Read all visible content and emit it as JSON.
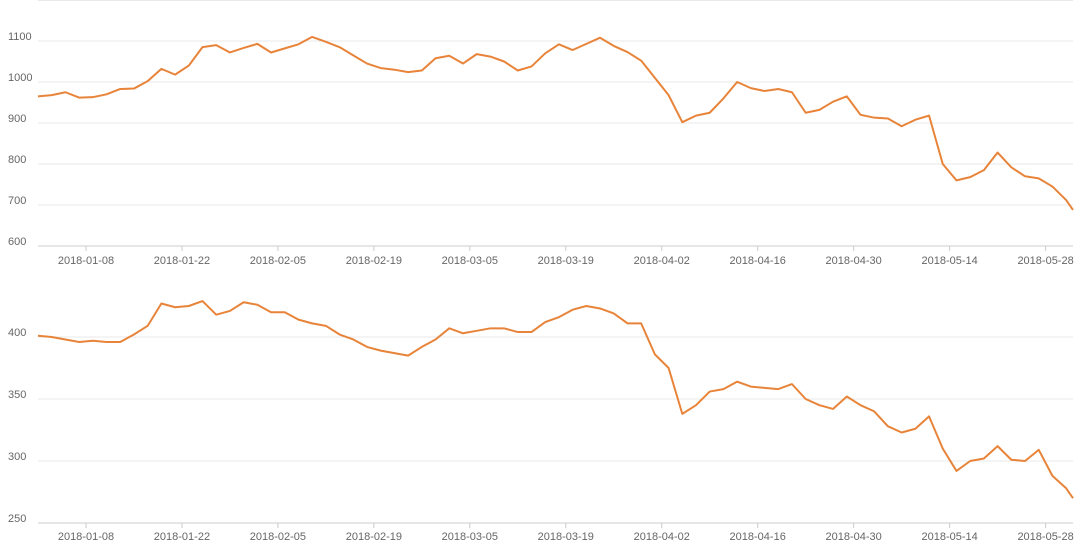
{
  "chart_data": [
    {
      "type": "line",
      "color": "#e8843a",
      "grid": true,
      "x": [
        "2018-01-01",
        "2018-01-03",
        "2018-01-05",
        "2018-01-07",
        "2018-01-09",
        "2018-01-11",
        "2018-01-13",
        "2018-01-15",
        "2018-01-17",
        "2018-01-19",
        "2018-01-21",
        "2018-01-23",
        "2018-01-25",
        "2018-01-27",
        "2018-01-29",
        "2018-01-31",
        "2018-02-02",
        "2018-02-04",
        "2018-02-06",
        "2018-02-08",
        "2018-02-10",
        "2018-02-12",
        "2018-02-14",
        "2018-02-16",
        "2018-02-18",
        "2018-02-20",
        "2018-02-22",
        "2018-02-24",
        "2018-02-26",
        "2018-02-28",
        "2018-03-02",
        "2018-03-04",
        "2018-03-06",
        "2018-03-08",
        "2018-03-10",
        "2018-03-12",
        "2018-03-14",
        "2018-03-16",
        "2018-03-18",
        "2018-03-20",
        "2018-03-22",
        "2018-03-24",
        "2018-03-26",
        "2018-03-28",
        "2018-03-30",
        "2018-04-01",
        "2018-04-03",
        "2018-04-05",
        "2018-04-07",
        "2018-04-09",
        "2018-04-11",
        "2018-04-13",
        "2018-04-15",
        "2018-04-17",
        "2018-04-19",
        "2018-04-21",
        "2018-04-23",
        "2018-04-25",
        "2018-04-27",
        "2018-04-29",
        "2018-05-01",
        "2018-05-03",
        "2018-05-05",
        "2018-05-07",
        "2018-05-09",
        "2018-05-11",
        "2018-05-13",
        "2018-05-15",
        "2018-05-17",
        "2018-05-19",
        "2018-05-21",
        "2018-05-23",
        "2018-05-25",
        "2018-05-27",
        "2018-05-29",
        "2018-05-31",
        "2018-06-01"
      ],
      "values": [
        965,
        968,
        975,
        962,
        963,
        970,
        983,
        984,
        1002,
        1032,
        1018,
        1040,
        1085,
        1090,
        1072,
        1083,
        1093,
        1072,
        1082,
        1092,
        1110,
        1098,
        1085,
        1065,
        1045,
        1034,
        1030,
        1024,
        1028,
        1058,
        1064,
        1045,
        1068,
        1062,
        1050,
        1028,
        1038,
        1070,
        1092,
        1078,
        1093,
        1108,
        1088,
        1073,
        1052,
        1010,
        968,
        902,
        918,
        925,
        960,
        1000,
        985,
        978,
        983,
        975,
        925,
        932,
        952,
        965,
        920,
        913,
        911,
        892,
        908,
        918,
        800,
        760,
        768,
        785,
        828,
        792,
        770,
        765,
        745,
        712,
        688
      ],
      "xlim": [
        "2018-01-01",
        "2018-06-01"
      ],
      "xticks": [
        "2018-01-08",
        "2018-01-22",
        "2018-02-05",
        "2018-02-19",
        "2018-03-05",
        "2018-03-19",
        "2018-04-02",
        "2018-04-16",
        "2018-04-30",
        "2018-05-14",
        "2018-05-28"
      ],
      "ylim": [
        600,
        1200
      ],
      "yticks": [
        600,
        700,
        800,
        900,
        1000,
        1100
      ]
    },
    {
      "type": "line",
      "color": "#e8843a",
      "grid": true,
      "x": [
        "2018-01-01",
        "2018-01-03",
        "2018-01-05",
        "2018-01-07",
        "2018-01-09",
        "2018-01-11",
        "2018-01-13",
        "2018-01-15",
        "2018-01-17",
        "2018-01-19",
        "2018-01-21",
        "2018-01-23",
        "2018-01-25",
        "2018-01-27",
        "2018-01-29",
        "2018-01-31",
        "2018-02-02",
        "2018-02-04",
        "2018-02-06",
        "2018-02-08",
        "2018-02-10",
        "2018-02-12",
        "2018-02-14",
        "2018-02-16",
        "2018-02-18",
        "2018-02-20",
        "2018-02-22",
        "2018-02-24",
        "2018-02-26",
        "2018-02-28",
        "2018-03-02",
        "2018-03-04",
        "2018-03-06",
        "2018-03-08",
        "2018-03-10",
        "2018-03-12",
        "2018-03-14",
        "2018-03-16",
        "2018-03-18",
        "2018-03-20",
        "2018-03-22",
        "2018-03-24",
        "2018-03-26",
        "2018-03-28",
        "2018-03-30",
        "2018-04-01",
        "2018-04-03",
        "2018-04-05",
        "2018-04-07",
        "2018-04-09",
        "2018-04-11",
        "2018-04-13",
        "2018-04-15",
        "2018-04-17",
        "2018-04-19",
        "2018-04-21",
        "2018-04-23",
        "2018-04-25",
        "2018-04-27",
        "2018-04-29",
        "2018-05-01",
        "2018-05-03",
        "2018-05-05",
        "2018-05-07",
        "2018-05-09",
        "2018-05-11",
        "2018-05-13",
        "2018-05-15",
        "2018-05-17",
        "2018-05-19",
        "2018-05-21",
        "2018-05-23",
        "2018-05-25",
        "2018-05-27",
        "2018-05-29",
        "2018-05-31",
        "2018-06-01"
      ],
      "values": [
        401,
        400,
        398,
        396,
        397,
        396,
        396,
        402,
        409,
        427,
        424,
        425,
        429,
        418,
        421,
        428,
        426,
        420,
        420,
        414,
        411,
        409,
        402,
        398,
        392,
        389,
        387,
        385,
        392,
        398,
        407,
        403,
        405,
        407,
        407,
        404,
        404,
        412,
        416,
        422,
        425,
        423,
        419,
        411,
        411,
        386,
        375,
        338,
        345,
        356,
        358,
        364,
        360,
        359,
        358,
        362,
        350,
        345,
        342,
        352,
        345,
        340,
        328,
        323,
        326,
        336,
        310,
        292,
        300,
        302,
        312,
        301,
        300,
        309,
        288,
        278,
        270
      ],
      "xlim": [
        "2018-01-01",
        "2018-06-01"
      ],
      "xticks": [
        "2018-01-08",
        "2018-01-22",
        "2018-02-05",
        "2018-02-19",
        "2018-03-05",
        "2018-03-19",
        "2018-04-02",
        "2018-04-16",
        "2018-04-30",
        "2018-05-14",
        "2018-05-28"
      ],
      "ylim": [
        250,
        450
      ],
      "yticks": [
        250,
        300,
        350,
        400
      ]
    }
  ]
}
